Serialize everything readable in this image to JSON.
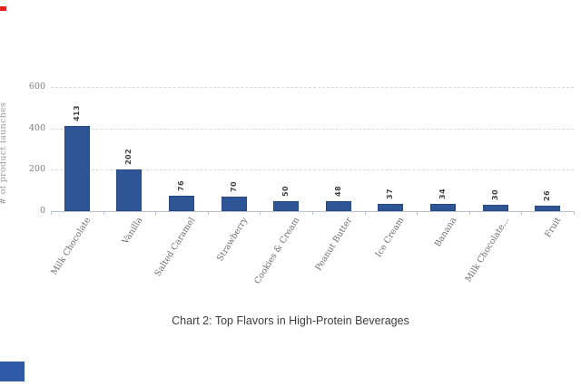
{
  "chart_data": {
    "type": "bar",
    "caption": "Chart 2: Top Flavors in High-Protein Beverages",
    "categories": [
      "Milk Chocolate",
      "Vanilla",
      "Salted Caramel",
      "Strawberry",
      "Cookies & Cream",
      "Peanut Butter",
      "Ice Cream",
      "Banana",
      "Milk Chocolate...",
      "Fruit"
    ],
    "values": [
      413,
      202,
      76,
      70,
      50,
      48,
      37,
      34,
      30,
      26
    ],
    "xlabel": "",
    "ylabel": "# of product launches",
    "ylim": [
      0,
      600
    ],
    "yticks": [
      0,
      200,
      400,
      600
    ],
    "grid": "horizontal-dashed",
    "legend_position": "none",
    "bar_color": "#2e5596",
    "bar_border_color": "#27497f",
    "grid_color": "#d9d9d9",
    "axis_color": "#b7c3d5",
    "y_tick_label_color": "#7f7f7f",
    "y_axis_title_color": "#9a9a9a",
    "category_label_color": "#6e6e6e",
    "value_label_color": "#404040",
    "caption_color": "#3d3d3d"
  },
  "edge_marks": {
    "red_mark_color": "#e1251c",
    "blue_mark_color": "#2e5aa7"
  }
}
